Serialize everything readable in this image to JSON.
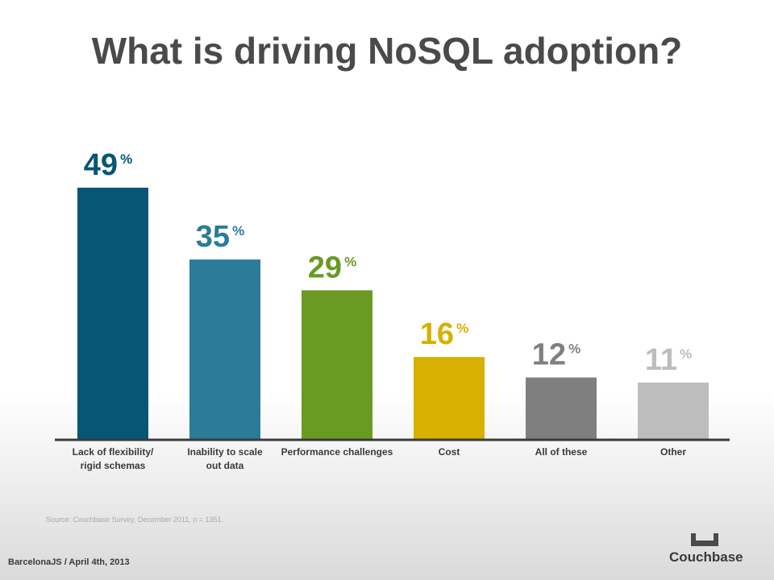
{
  "slide": {
    "title": "What is driving NoSQL adoption?",
    "source_note": "Source: Couchbase Survey, December 2011, n = 1351.",
    "footer": "BarcelonaJS / April 4th, 2013",
    "logo_text": "Couchbase"
  },
  "chart_data": {
    "type": "bar",
    "title": "What is driving NoSQL adoption?",
    "categories": [
      [
        "Lack of flexibility/",
        "rigid schemas"
      ],
      [
        "Inability to scale",
        "out data"
      ],
      [
        "Performance challenges"
      ],
      [
        "Cost"
      ],
      [
        "All of these"
      ],
      [
        "Other"
      ]
    ],
    "values": [
      49,
      35,
      29,
      16,
      12,
      11
    ],
    "value_suffix": "%",
    "colors": [
      "#075675",
      "#2a7c99",
      "#6a9a22",
      "#d7b000",
      "#7f7f7f",
      "#bdbdbd"
    ],
    "xlabel": "",
    "ylabel": "",
    "ylim": [
      0,
      49
    ],
    "grid": false,
    "legend": "none"
  }
}
